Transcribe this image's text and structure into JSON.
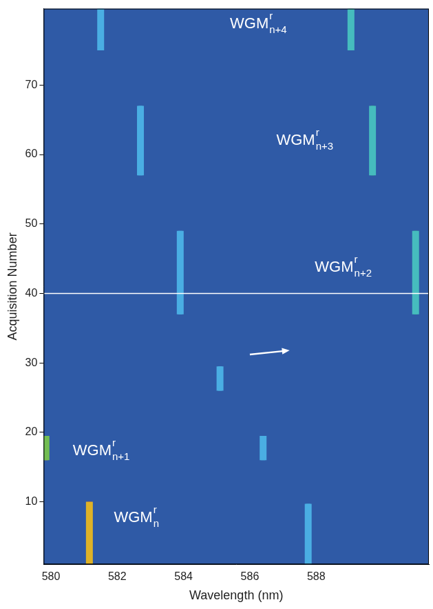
{
  "chart_data": {
    "type": "heatmap",
    "x_label": "Wavelength (nm)",
    "y_label": "Acquisition Number",
    "xlim": [
      579.78,
      591.4
    ],
    "xticks": [
      580,
      582,
      584,
      586,
      588
    ],
    "ylim": [
      1,
      81
    ],
    "yticks": [
      10,
      20,
      30,
      40,
      50,
      60,
      70
    ],
    "grid": false,
    "streaks": [
      {
        "wavelength": 581.16,
        "from": 1,
        "to": 10,
        "intensity": 1.0
      },
      {
        "wavelength": 587.76,
        "from": 1,
        "to": 9.7,
        "intensity": 0.42
      },
      {
        "wavelength": 579.85,
        "from": 16,
        "to": 19.5,
        "intensity": 0.85
      },
      {
        "wavelength": 586.4,
        "from": 16,
        "to": 19.5,
        "intensity": 0.42
      },
      {
        "wavelength": 585.1,
        "from": 26,
        "to": 29.5,
        "intensity": 0.42
      },
      {
        "wavelength": 583.9,
        "from": 37,
        "to": 49,
        "intensity": 0.42
      },
      {
        "wavelength": 591.0,
        "from": 37,
        "to": 49,
        "intensity": 0.6
      },
      {
        "wavelength": 582.7,
        "from": 57,
        "to": 67,
        "intensity": 0.42
      },
      {
        "wavelength": 589.7,
        "from": 57,
        "to": 67,
        "intensity": 0.6
      },
      {
        "wavelength": 581.5,
        "from": 75,
        "to": 81,
        "intensity": 0.42
      },
      {
        "wavelength": 589.05,
        "from": 75,
        "to": 81,
        "intensity": 0.6
      }
    ],
    "hline": 40,
    "arrow": {
      "from": [
        586.0,
        31.2
      ],
      "to": [
        587.2,
        31.8
      ]
    },
    "annotations": [
      {
        "text": "WGM",
        "sup": "r",
        "sub": "n",
        "x": 581.9,
        "y": 7.7
      },
      {
        "text": "WGM",
        "sup": "r",
        "sub": "n+1",
        "x": 580.66,
        "y": 17.3
      },
      {
        "text": "WGM",
        "sup": "r",
        "sub": "n+2",
        "x": 587.96,
        "y": 43.7
      },
      {
        "text": "WGM",
        "sup": "r",
        "sub": "n+3",
        "x": 586.8,
        "y": 62
      },
      {
        "text": "WGM",
        "sup": "r",
        "sub": "n+4",
        "x": 585.4,
        "y": 78.8
      }
    ]
  }
}
